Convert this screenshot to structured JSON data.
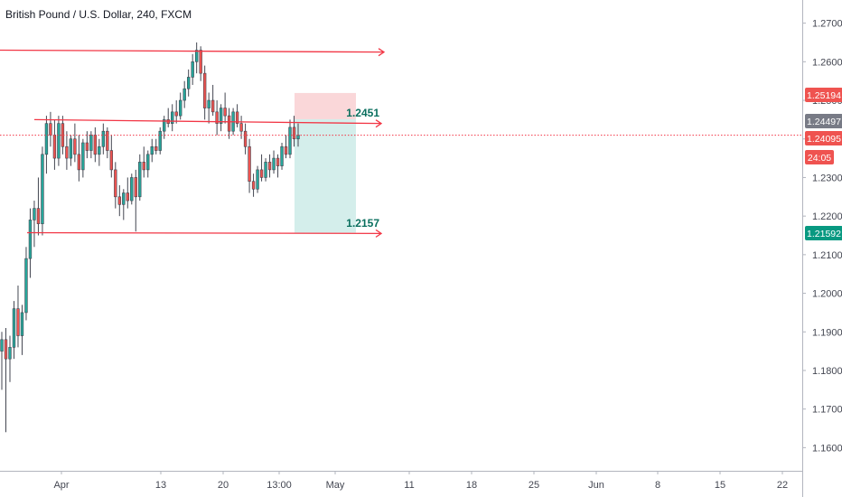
{
  "header": {
    "title": "British Pound / U.S. Dollar, 240, FXCM"
  },
  "colors": {
    "up": "#26a69a",
    "down": "#ef5350",
    "candle_border": "#434651",
    "line": "#f23645",
    "stop_zone": "#f8c9cc",
    "target_zone": "#cdebe7",
    "level_label": "#0a6f5e",
    "price_tag_red": "#ef5350",
    "price_tag_gray": "#787b86",
    "price_tag_teal": "#089981"
  },
  "chart_data": {
    "type": "candlestick",
    "title": "British Pound / U.S. Dollar, 240, FXCM",
    "y_ticks": [
      "1.27000",
      "1.26000",
      "1.25000",
      "1.24000",
      "1.23000",
      "1.22000",
      "1.21000",
      "1.20000",
      "1.19000",
      "1.18000",
      "1.17000",
      "1.16000"
    ],
    "ylim": [
      1.154,
      1.276
    ],
    "x_ticks": [
      "Apr",
      "13",
      "20",
      "13:00",
      "May",
      "11",
      "18",
      "25",
      "Jun",
      "8",
      "15",
      "22"
    ],
    "price_tags": [
      {
        "value": "1.25194",
        "style": "red"
      },
      {
        "value": "1.24497",
        "style": "gray"
      },
      {
        "value": "1.24095",
        "style": "red"
      },
      {
        "value": "24:05",
        "style": "red"
      },
      {
        "value": "1.21592",
        "style": "teal"
      }
    ],
    "position_labels": {
      "entry": "1.2451",
      "target": "1.2157"
    },
    "position": {
      "entry": 1.2451,
      "stop": 1.2519,
      "target": 1.2157
    },
    "current_price": 1.24095,
    "horizontal_rays": [
      {
        "start": 1.263,
        "end": 1.2625
      },
      {
        "start": 1.245,
        "end": 1.244
      },
      {
        "start": 1.2157,
        "end": 1.2155
      }
    ],
    "candles": [
      [
        1.185,
        1.19,
        1.175,
        1.188
      ],
      [
        1.188,
        1.191,
        1.164,
        1.183
      ],
      [
        1.183,
        1.189,
        1.177,
        1.186
      ],
      [
        1.186,
        1.198,
        1.183,
        1.196
      ],
      [
        1.196,
        1.202,
        1.186,
        1.189
      ],
      [
        1.189,
        1.197,
        1.184,
        1.195
      ],
      [
        1.195,
        1.212,
        1.193,
        1.209
      ],
      [
        1.209,
        1.222,
        1.204,
        1.219
      ],
      [
        1.219,
        1.224,
        1.212,
        1.222
      ],
      [
        1.222,
        1.23,
        1.215,
        1.218
      ],
      [
        1.218,
        1.238,
        1.215,
        1.236
      ],
      [
        1.236,
        1.246,
        1.231,
        1.244
      ],
      [
        1.244,
        1.247,
        1.238,
        1.241
      ],
      [
        1.241,
        1.245,
        1.232,
        1.235
      ],
      [
        1.235,
        1.246,
        1.233,
        1.244
      ],
      [
        1.244,
        1.246,
        1.236,
        1.238
      ],
      [
        1.238,
        1.242,
        1.232,
        1.235
      ],
      [
        1.235,
        1.241,
        1.233,
        1.24
      ],
      [
        1.24,
        1.244,
        1.234,
        1.236
      ],
      [
        1.236,
        1.241,
        1.229,
        1.232
      ],
      [
        1.232,
        1.24,
        1.23,
        1.239
      ],
      [
        1.239,
        1.242,
        1.235,
        1.237
      ],
      [
        1.237,
        1.242,
        1.235,
        1.241
      ],
      [
        1.241,
        1.243,
        1.234,
        1.236
      ],
      [
        1.236,
        1.24,
        1.233,
        1.238
      ],
      [
        1.238,
        1.244,
        1.236,
        1.242
      ],
      [
        1.242,
        1.243,
        1.235,
        1.237
      ],
      [
        1.237,
        1.241,
        1.23,
        1.232
      ],
      [
        1.232,
        1.234,
        1.222,
        1.225
      ],
      [
        1.225,
        1.228,
        1.22,
        1.223
      ],
      [
        1.223,
        1.227,
        1.219,
        1.226
      ],
      [
        1.226,
        1.23,
        1.222,
        1.224
      ],
      [
        1.224,
        1.231,
        1.223,
        1.23
      ],
      [
        1.23,
        1.232,
        1.216,
        1.225
      ],
      [
        1.225,
        1.236,
        1.224,
        1.234
      ],
      [
        1.234,
        1.238,
        1.23,
        1.232
      ],
      [
        1.232,
        1.237,
        1.23,
        1.236
      ],
      [
        1.236,
        1.24,
        1.234,
        1.238
      ],
      [
        1.238,
        1.24,
        1.236,
        1.237
      ],
      [
        1.237,
        1.243,
        1.236,
        1.242
      ],
      [
        1.242,
        1.246,
        1.24,
        1.245
      ],
      [
        1.245,
        1.248,
        1.243,
        1.244
      ],
      [
        1.244,
        1.249,
        1.242,
        1.247
      ],
      [
        1.247,
        1.25,
        1.244,
        1.246
      ],
      [
        1.246,
        1.252,
        1.245,
        1.25
      ],
      [
        1.25,
        1.255,
        1.248,
        1.253
      ],
      [
        1.253,
        1.258,
        1.251,
        1.256
      ],
      [
        1.256,
        1.262,
        1.254,
        1.26
      ],
      [
        1.26,
        1.265,
        1.257,
        1.263
      ],
      [
        1.263,
        1.264,
        1.255,
        1.257
      ],
      [
        1.257,
        1.259,
        1.245,
        1.248
      ],
      [
        1.248,
        1.252,
        1.244,
        1.25
      ],
      [
        1.25,
        1.254,
        1.246,
        1.247
      ],
      [
        1.247,
        1.25,
        1.241,
        1.244
      ],
      [
        1.244,
        1.249,
        1.242,
        1.248
      ],
      [
        1.248,
        1.252,
        1.244,
        1.246
      ],
      [
        1.246,
        1.248,
        1.24,
        1.242
      ],
      [
        1.242,
        1.248,
        1.241,
        1.247
      ],
      [
        1.247,
        1.249,
        1.243,
        1.244
      ],
      [
        1.244,
        1.246,
        1.24,
        1.242
      ],
      [
        1.242,
        1.244,
        1.236,
        1.238
      ],
      [
        1.238,
        1.24,
        1.226,
        1.229
      ],
      [
        1.229,
        1.231,
        1.225,
        1.227
      ],
      [
        1.227,
        1.233,
        1.226,
        1.232
      ],
      [
        1.232,
        1.236,
        1.229,
        1.23
      ],
      [
        1.23,
        1.235,
        1.229,
        1.234
      ],
      [
        1.234,
        1.236,
        1.23,
        1.232
      ],
      [
        1.232,
        1.237,
        1.231,
        1.235
      ],
      [
        1.235,
        1.236,
        1.23,
        1.233
      ],
      [
        1.233,
        1.239,
        1.232,
        1.238
      ],
      [
        1.238,
        1.241,
        1.235,
        1.236
      ],
      [
        1.236,
        1.245,
        1.235,
        1.243
      ],
      [
        1.243,
        1.246,
        1.238,
        1.24
      ],
      [
        1.24,
        1.244,
        1.238,
        1.241
      ]
    ]
  }
}
